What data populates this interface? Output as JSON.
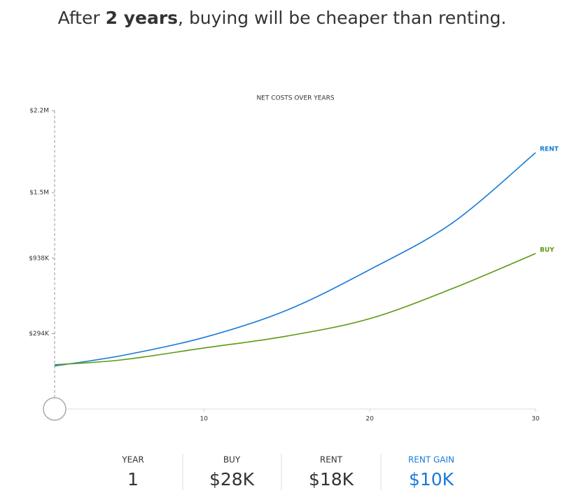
{
  "headline": {
    "before": "After",
    "bold": "2 years",
    "after": ", buying will be cheaper than renting."
  },
  "chart_data": {
    "type": "line",
    "title": "NET COSTS OVER YEARS",
    "x": [
      1,
      5,
      10,
      15,
      20,
      25,
      30
    ],
    "series": [
      {
        "name": "RENT",
        "color": "#1a7bd8",
        "values": [
          18000,
          105000,
          261000,
          494000,
          841000,
          1242000,
          1841000
        ]
      },
      {
        "name": "BUY",
        "color": "#5a9a12",
        "values": [
          28000,
          69000,
          171000,
          273000,
          422000,
          680000,
          979000
        ]
      }
    ],
    "xlim": [
      1,
      30
    ],
    "xticks": [
      10,
      20,
      30
    ],
    "ylim": [
      -350000,
      2200000
    ],
    "yticks": [
      {
        "value": 294000,
        "label": "$294K"
      },
      {
        "value": 938000,
        "label": "$938K"
      },
      {
        "value": 1500000,
        "label": "$1.5M"
      },
      {
        "value": 2200000,
        "label": "$2.2M"
      }
    ]
  },
  "summary": [
    {
      "label": "YEAR",
      "value": "1"
    },
    {
      "label": "BUY",
      "value": "$28K"
    },
    {
      "label": "RENT",
      "value": "$18K"
    },
    {
      "label": "RENT GAIN",
      "value": "$10K"
    }
  ]
}
